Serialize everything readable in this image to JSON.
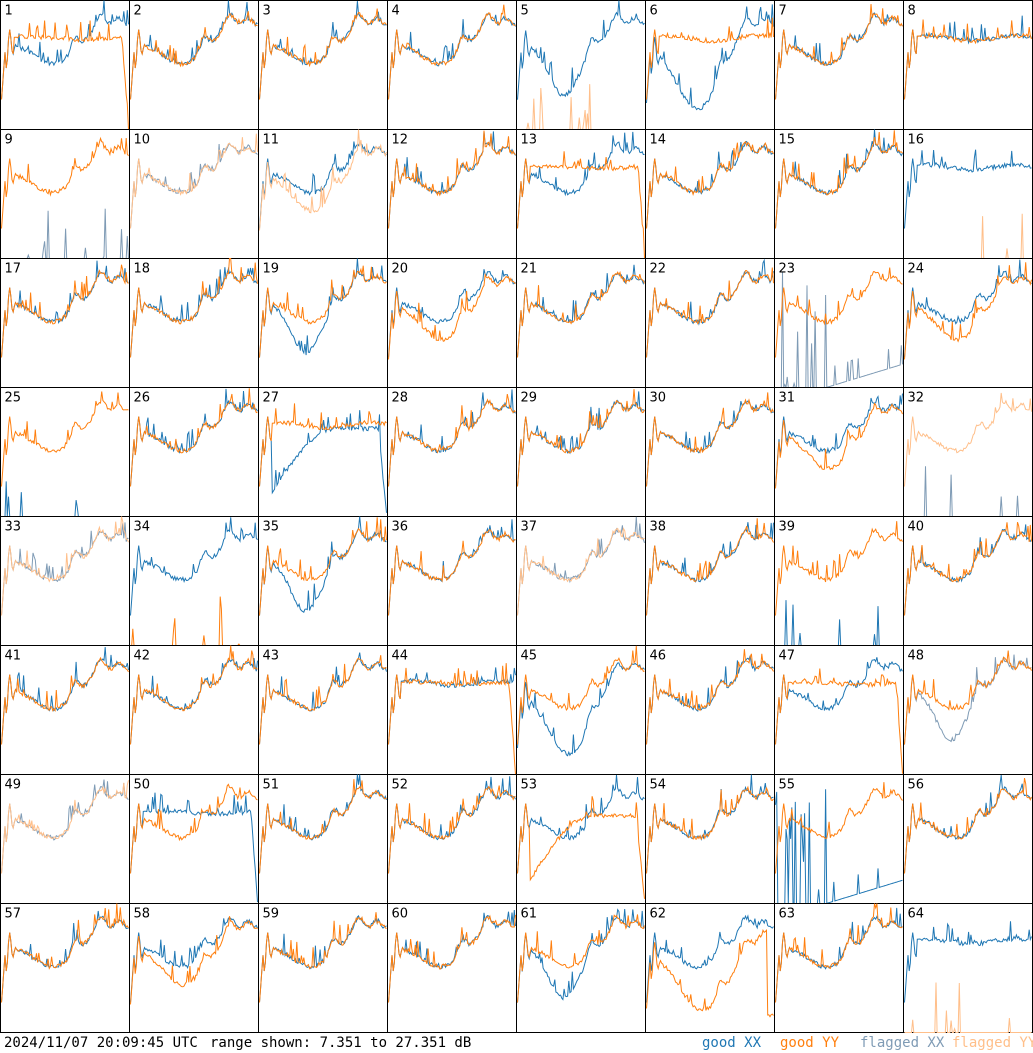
{
  "footer": {
    "timestamp": "2024/11/07 20:09:45 UTC",
    "range_text": "range shown: 7.351 to 27.351 dB",
    "legend": [
      {
        "label": "good XX",
        "color": "#1f77b4"
      },
      {
        "label": "good YY",
        "color": "#ff7f0e"
      },
      {
        "label": "flagged XX",
        "color": "#7f9bb5"
      },
      {
        "label": "flagged YY",
        "color": "#ffbf8a"
      }
    ]
  },
  "chart_data": {
    "type": "line",
    "title": "",
    "xlabel": "",
    "ylabel": "",
    "ylim": [
      7.351,
      27.351
    ],
    "grid": {
      "rows": 8,
      "cols": 8
    },
    "series_names": [
      "good XX",
      "good YY",
      "flagged XX",
      "flagged YY"
    ],
    "colors": {
      "good_xx": "#1f77b4",
      "good_yy": "#ff7f0e",
      "flagged_xx": "#7f9bb5",
      "flagged_yy": "#ffbf8a"
    },
    "panels": [
      {
        "id": "1",
        "xx_flag": false,
        "yy_flag": false,
        "xx_profile": "normal",
        "yy_profile": "flat_drop"
      },
      {
        "id": "2",
        "xx_flag": false,
        "yy_flag": false,
        "xx_profile": "normal",
        "yy_profile": "normal"
      },
      {
        "id": "3",
        "xx_flag": false,
        "yy_flag": false,
        "xx_profile": "normal",
        "yy_profile": "normal"
      },
      {
        "id": "4",
        "xx_flag": false,
        "yy_flag": false,
        "xx_profile": "normal",
        "yy_profile": "normal"
      },
      {
        "id": "5",
        "xx_flag": false,
        "yy_flag": true,
        "xx_profile": "dip",
        "yy_profile": "spikes"
      },
      {
        "id": "6",
        "xx_flag": false,
        "yy_flag": false,
        "xx_profile": "low_dip",
        "yy_profile": "flat"
      },
      {
        "id": "7",
        "xx_flag": false,
        "yy_flag": false,
        "xx_profile": "normal",
        "yy_profile": "normal"
      },
      {
        "id": "8",
        "xx_flag": false,
        "yy_flag": false,
        "xx_profile": "flat",
        "yy_profile": "flat"
      },
      {
        "id": "9",
        "xx_flag": true,
        "yy_flag": false,
        "xx_profile": "spikes",
        "yy_profile": "normal"
      },
      {
        "id": "10",
        "xx_flag": true,
        "yy_flag": true,
        "xx_profile": "normal",
        "yy_profile": "normal"
      },
      {
        "id": "11",
        "xx_flag": false,
        "yy_flag": true,
        "xx_profile": "normal",
        "yy_profile": "low"
      },
      {
        "id": "12",
        "xx_flag": false,
        "yy_flag": false,
        "xx_profile": "normal",
        "yy_profile": "normal"
      },
      {
        "id": "13",
        "xx_flag": false,
        "yy_flag": false,
        "xx_profile": "normal",
        "yy_profile": "flat_drop"
      },
      {
        "id": "14",
        "xx_flag": false,
        "yy_flag": false,
        "xx_profile": "normal",
        "yy_profile": "normal"
      },
      {
        "id": "15",
        "xx_flag": false,
        "yy_flag": false,
        "xx_profile": "normal",
        "yy_profile": "normal"
      },
      {
        "id": "16",
        "xx_flag": false,
        "yy_flag": true,
        "xx_profile": "flat",
        "yy_profile": "spikes"
      },
      {
        "id": "17",
        "xx_flag": false,
        "yy_flag": false,
        "xx_profile": "normal",
        "yy_profile": "normal"
      },
      {
        "id": "18",
        "xx_flag": false,
        "yy_flag": false,
        "xx_profile": "normal",
        "yy_profile": "normal"
      },
      {
        "id": "19",
        "xx_flag": false,
        "yy_flag": false,
        "xx_profile": "dip",
        "yy_profile": "normal"
      },
      {
        "id": "20",
        "xx_flag": false,
        "yy_flag": false,
        "xx_profile": "normal",
        "yy_profile": "low"
      },
      {
        "id": "21",
        "xx_flag": false,
        "yy_flag": false,
        "xx_profile": "normal",
        "yy_profile": "normal"
      },
      {
        "id": "22",
        "xx_flag": false,
        "yy_flag": false,
        "xx_profile": "normal",
        "yy_profile": "normal"
      },
      {
        "id": "23",
        "xx_flag": true,
        "yy_flag": false,
        "xx_profile": "spikes_rise",
        "yy_profile": "normal"
      },
      {
        "id": "24",
        "xx_flag": false,
        "yy_flag": false,
        "xx_profile": "normal",
        "yy_profile": "low"
      },
      {
        "id": "25",
        "xx_flag": false,
        "yy_flag": false,
        "xx_profile": "spikes",
        "yy_profile": "normal"
      },
      {
        "id": "26",
        "xx_flag": false,
        "yy_flag": false,
        "xx_profile": "normal",
        "yy_profile": "normal"
      },
      {
        "id": "27",
        "xx_flag": false,
        "yy_flag": false,
        "xx_profile": "hump_drop",
        "yy_profile": "flat"
      },
      {
        "id": "28",
        "xx_flag": false,
        "yy_flag": false,
        "xx_profile": "normal",
        "yy_profile": "normal"
      },
      {
        "id": "29",
        "xx_flag": false,
        "yy_flag": false,
        "xx_profile": "normal",
        "yy_profile": "normal"
      },
      {
        "id": "30",
        "xx_flag": false,
        "yy_flag": false,
        "xx_profile": "normal",
        "yy_profile": "normal"
      },
      {
        "id": "31",
        "xx_flag": false,
        "yy_flag": false,
        "xx_profile": "normal",
        "yy_profile": "low"
      },
      {
        "id": "32",
        "xx_flag": true,
        "yy_flag": true,
        "xx_profile": "spikes",
        "yy_profile": "normal"
      },
      {
        "id": "33",
        "xx_flag": true,
        "yy_flag": true,
        "xx_profile": "normal",
        "yy_profile": "normal"
      },
      {
        "id": "34",
        "xx_flag": false,
        "yy_flag": false,
        "xx_profile": "normal",
        "yy_profile": "spikes"
      },
      {
        "id": "35",
        "xx_flag": false,
        "yy_flag": false,
        "xx_profile": "dip",
        "yy_profile": "normal"
      },
      {
        "id": "36",
        "xx_flag": false,
        "yy_flag": false,
        "xx_profile": "normal",
        "yy_profile": "normal"
      },
      {
        "id": "37",
        "xx_flag": true,
        "yy_flag": true,
        "xx_profile": "normal",
        "yy_profile": "normal"
      },
      {
        "id": "38",
        "xx_flag": false,
        "yy_flag": false,
        "xx_profile": "normal",
        "yy_profile": "normal"
      },
      {
        "id": "39",
        "xx_flag": false,
        "yy_flag": false,
        "xx_profile": "spikes",
        "yy_profile": "normal"
      },
      {
        "id": "40",
        "xx_flag": false,
        "yy_flag": false,
        "xx_profile": "normal",
        "yy_profile": "normal"
      },
      {
        "id": "41",
        "xx_flag": false,
        "yy_flag": false,
        "xx_profile": "normal",
        "yy_profile": "normal"
      },
      {
        "id": "42",
        "xx_flag": false,
        "yy_flag": false,
        "xx_profile": "normal",
        "yy_profile": "normal"
      },
      {
        "id": "43",
        "xx_flag": false,
        "yy_flag": false,
        "xx_profile": "normal",
        "yy_profile": "normal"
      },
      {
        "id": "44",
        "xx_flag": false,
        "yy_flag": false,
        "xx_profile": "flat",
        "yy_profile": "flat_drop"
      },
      {
        "id": "45",
        "xx_flag": false,
        "yy_flag": false,
        "xx_profile": "low_dip",
        "yy_profile": "normal"
      },
      {
        "id": "46",
        "xx_flag": false,
        "yy_flag": false,
        "xx_profile": "normal",
        "yy_profile": "normal"
      },
      {
        "id": "47",
        "xx_flag": false,
        "yy_flag": false,
        "xx_profile": "normal",
        "yy_profile": "flat_drop"
      },
      {
        "id": "48",
        "xx_flag": true,
        "yy_flag": false,
        "xx_profile": "dip",
        "yy_profile": "normal"
      },
      {
        "id": "49",
        "xx_flag": true,
        "yy_flag": true,
        "xx_profile": "normal",
        "yy_profile": "normal"
      },
      {
        "id": "50",
        "xx_flag": false,
        "yy_flag": false,
        "xx_profile": "flat_drop",
        "yy_profile": "normal"
      },
      {
        "id": "51",
        "xx_flag": false,
        "yy_flag": false,
        "xx_profile": "normal",
        "yy_profile": "normal"
      },
      {
        "id": "52",
        "xx_flag": false,
        "yy_flag": false,
        "xx_profile": "normal",
        "yy_profile": "normal"
      },
      {
        "id": "53",
        "xx_flag": false,
        "yy_flag": false,
        "xx_profile": "normal",
        "yy_profile": "hump_drop"
      },
      {
        "id": "54",
        "xx_flag": false,
        "yy_flag": false,
        "xx_profile": "normal",
        "yy_profile": "normal"
      },
      {
        "id": "55",
        "xx_flag": false,
        "yy_flag": false,
        "xx_profile": "spikes_rise",
        "yy_profile": "normal"
      },
      {
        "id": "56",
        "xx_flag": false,
        "yy_flag": false,
        "xx_profile": "normal",
        "yy_profile": "normal"
      },
      {
        "id": "57",
        "xx_flag": false,
        "yy_flag": false,
        "xx_profile": "normal",
        "yy_profile": "normal"
      },
      {
        "id": "58",
        "xx_flag": false,
        "yy_flag": false,
        "xx_profile": "normal",
        "yy_profile": "low"
      },
      {
        "id": "59",
        "xx_flag": false,
        "yy_flag": false,
        "xx_profile": "normal",
        "yy_profile": "normal"
      },
      {
        "id": "60",
        "xx_flag": false,
        "yy_flag": false,
        "xx_profile": "normal",
        "yy_profile": "normal"
      },
      {
        "id": "61",
        "xx_flag": false,
        "yy_flag": false,
        "xx_profile": "dip",
        "yy_profile": "normal"
      },
      {
        "id": "62",
        "xx_flag": false,
        "yy_flag": false,
        "xx_profile": "normal",
        "yy_profile": "low_drop"
      },
      {
        "id": "63",
        "xx_flag": false,
        "yy_flag": false,
        "xx_profile": "normal",
        "yy_profile": "normal"
      },
      {
        "id": "64",
        "xx_flag": false,
        "yy_flag": true,
        "xx_profile": "flat",
        "yy_profile": "spikes"
      }
    ]
  }
}
